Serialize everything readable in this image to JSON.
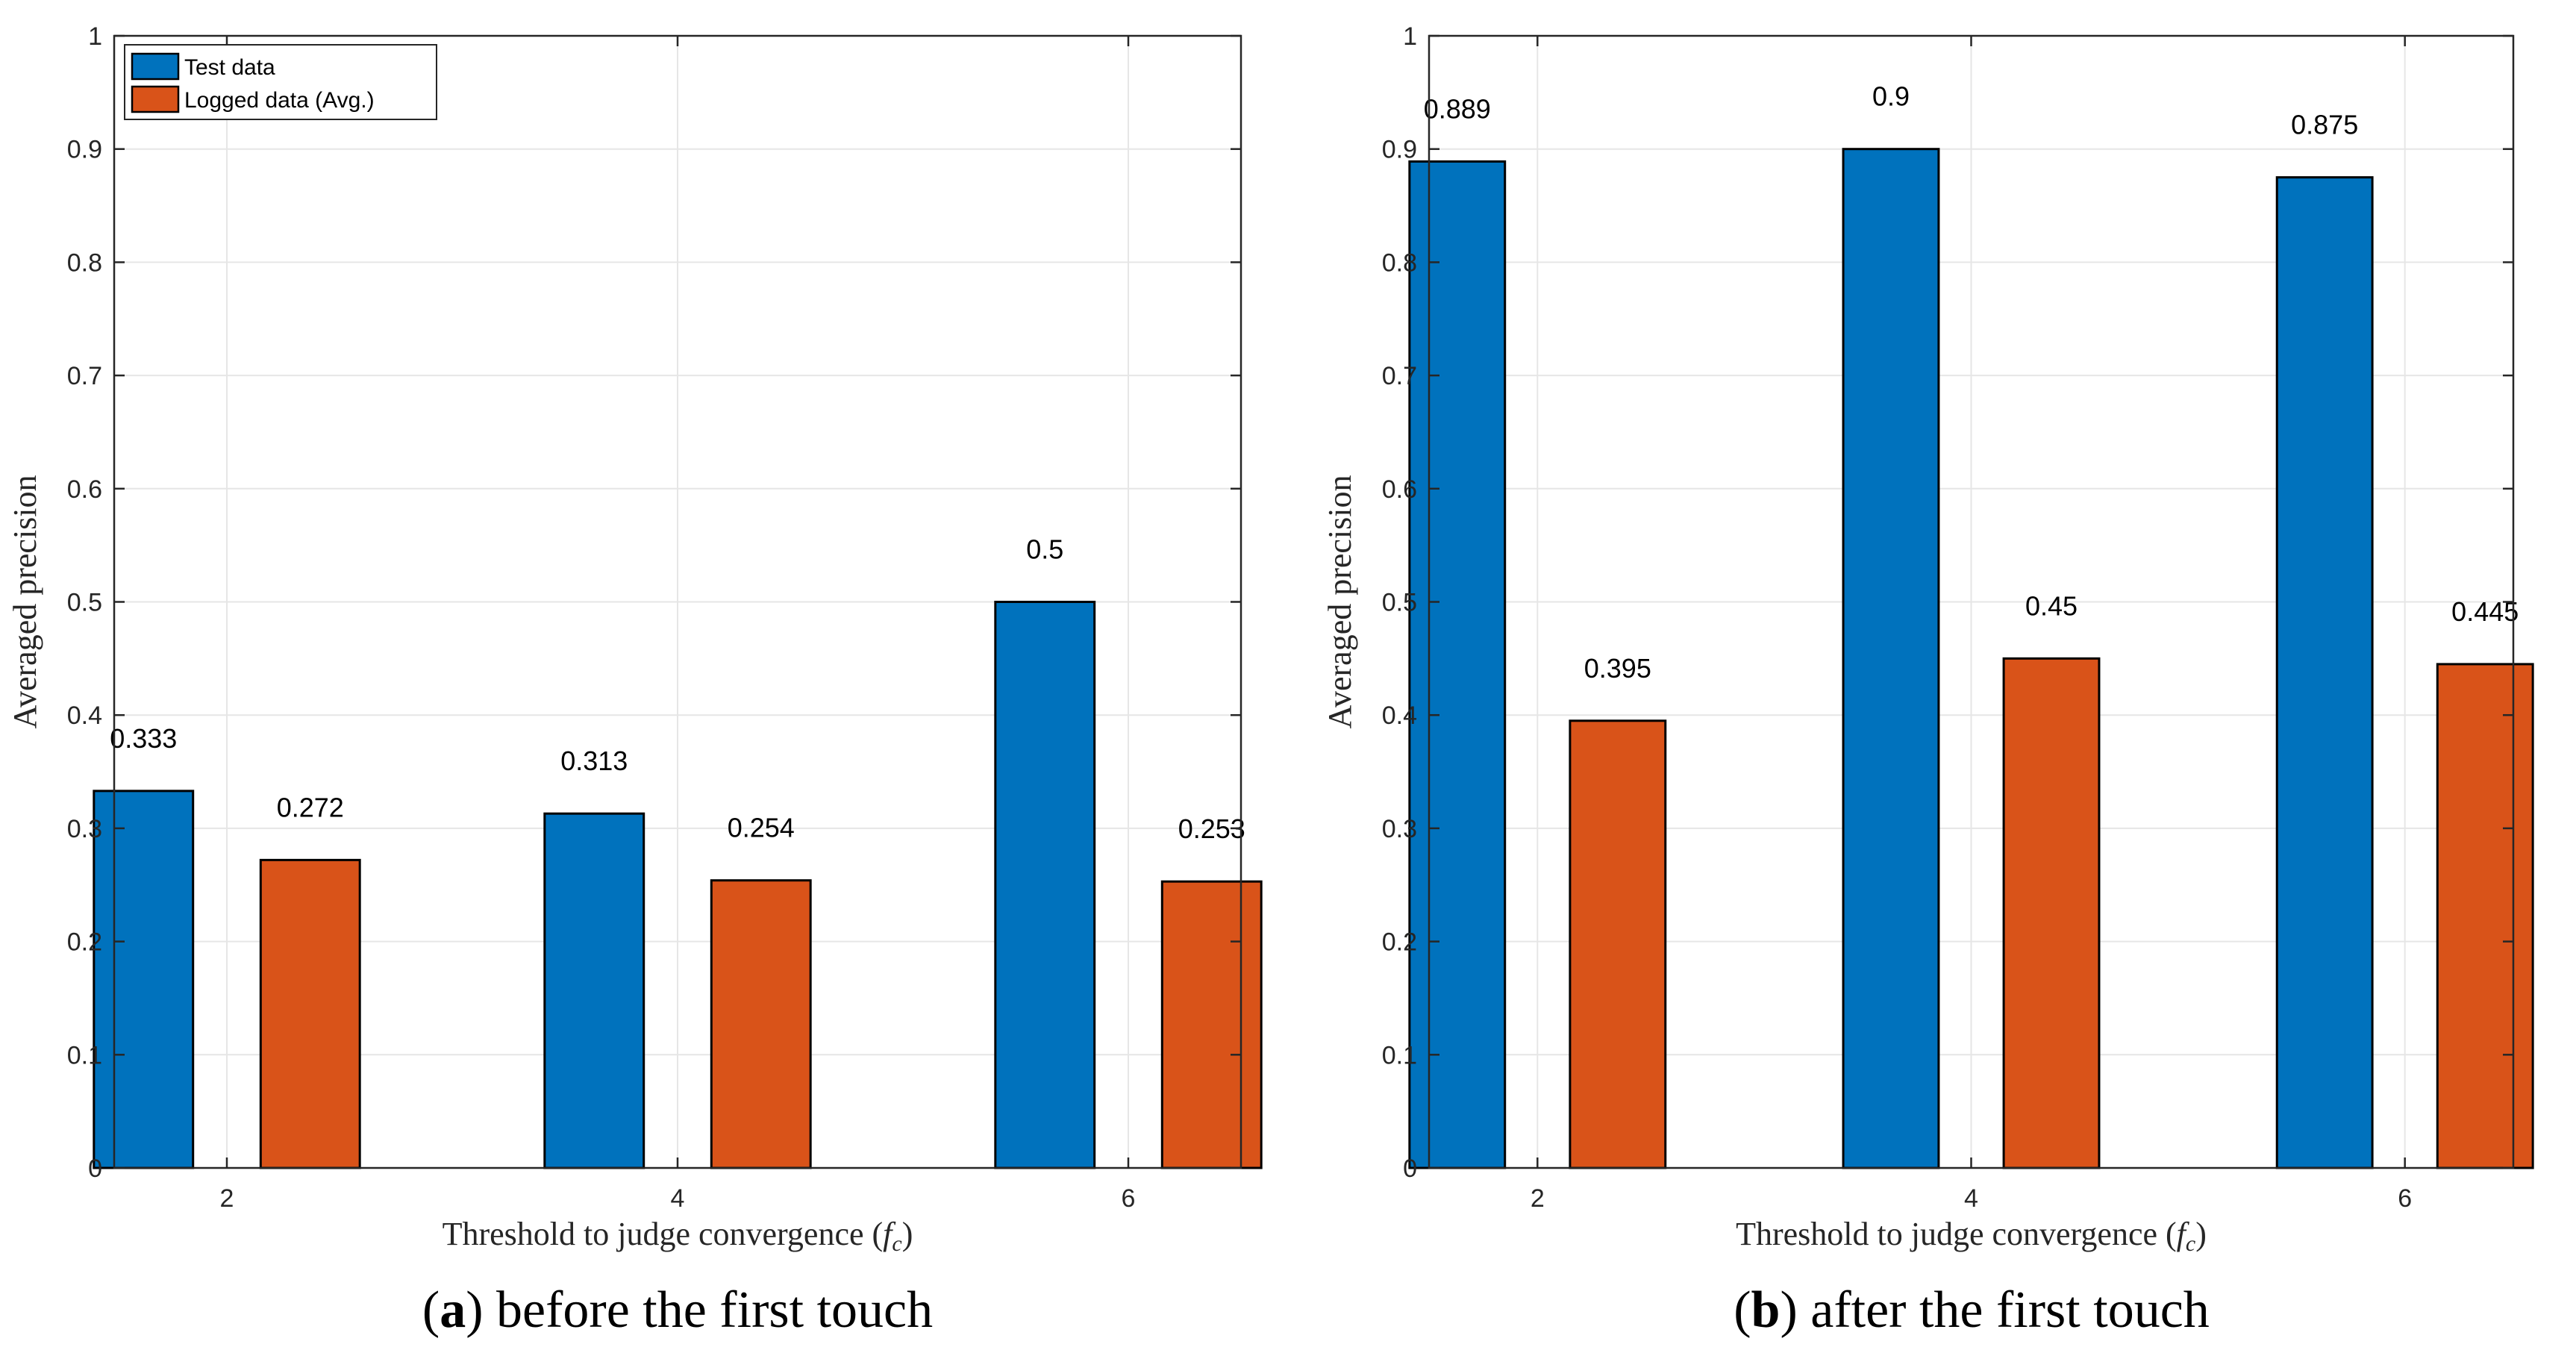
{
  "chart_data": [
    {
      "type": "bar",
      "categories": [
        "2",
        "4",
        "6"
      ],
      "series": [
        {
          "name": "Test data",
          "values": [
            0.333,
            0.313,
            0.5
          ],
          "labels": [
            "0.333",
            "0.313",
            "0.5"
          ],
          "color": "#0072BD"
        },
        {
          "name": "Logged data (Avg.)",
          "values": [
            0.272,
            0.254,
            0.253
          ],
          "labels": [
            "0.272",
            "0.254",
            "0.253"
          ],
          "color": "#D95319"
        }
      ],
      "xlabel": "Threshold to judge convergence (",
      "xlabel_var": "f",
      "xlabel_sub": "c",
      "xlabel_close": ")",
      "ylabel": "Averaged precision",
      "ylim": [
        0,
        1
      ],
      "yticks": [
        "0",
        "0.1",
        "0.2",
        "0.3",
        "0.4",
        "0.5",
        "0.6",
        "0.7",
        "0.8",
        "0.9",
        "1"
      ],
      "caption_letter": "a",
      "caption_text": "before the first touch",
      "legend": true,
      "legend_location": "top-left",
      "grid": true
    },
    {
      "type": "bar",
      "categories": [
        "2",
        "4",
        "6"
      ],
      "series": [
        {
          "name": "Test data",
          "values": [
            0.889,
            0.9,
            0.875
          ],
          "labels": [
            "0.889",
            "0.9",
            "0.875"
          ],
          "color": "#0072BD"
        },
        {
          "name": "Logged data (Avg.)",
          "values": [
            0.395,
            0.45,
            0.445
          ],
          "labels": [
            "0.395",
            "0.45",
            "0.445"
          ],
          "color": "#D95319"
        }
      ],
      "xlabel": "Threshold to judge convergence (",
      "xlabel_var": "f",
      "xlabel_sub": "c",
      "xlabel_close": ")",
      "ylabel": "Averaged precision",
      "ylim": [
        0,
        1
      ],
      "yticks": [
        "0",
        "0.1",
        "0.2",
        "0.3",
        "0.4",
        "0.5",
        "0.6",
        "0.7",
        "0.8",
        "0.9",
        "1"
      ],
      "caption_letter": "b",
      "caption_text": "after the first touch",
      "legend": false,
      "grid": true
    }
  ]
}
